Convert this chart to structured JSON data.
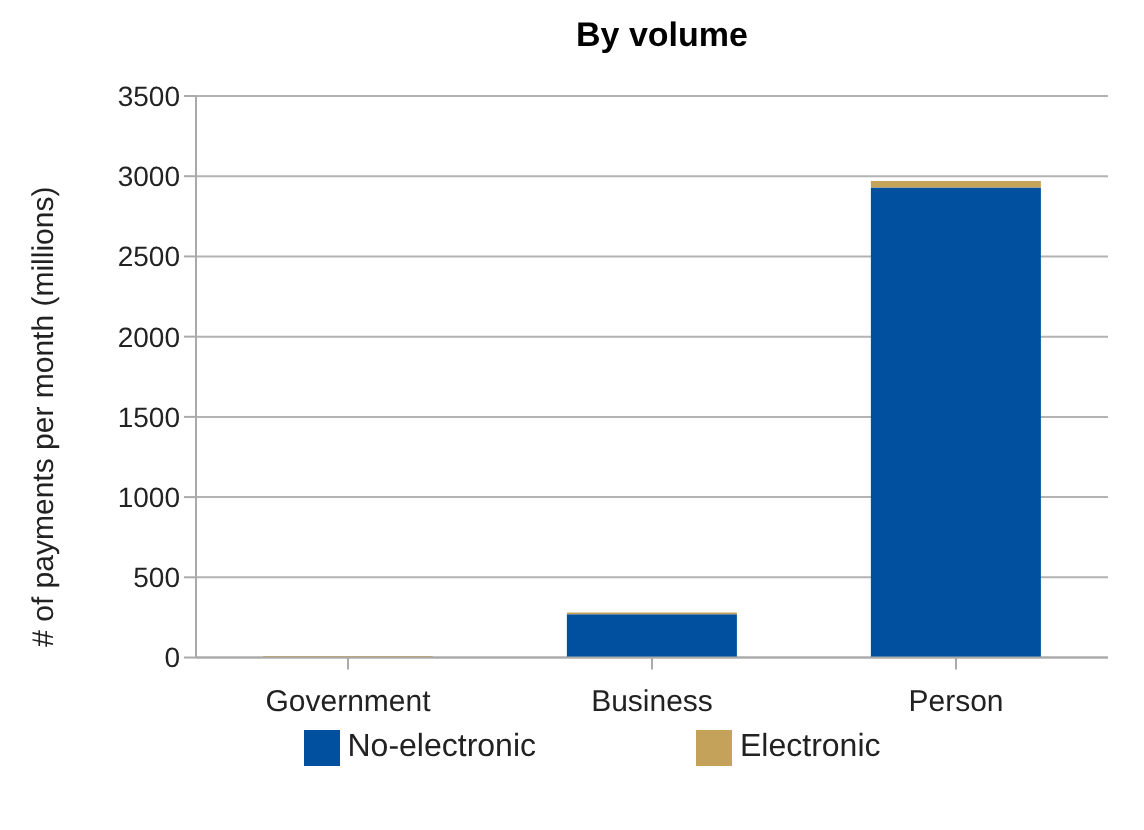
{
  "chart_data": {
    "type": "bar",
    "title": "By volume",
    "ylabel": "# of payments per month (millions)",
    "categories": [
      "Government",
      "Business",
      "Person"
    ],
    "stacked": true,
    "series": [
      {
        "name": "No-electronic",
        "color": "#0050a0",
        "values": [
          0,
          270,
          2930
        ]
      },
      {
        "name": "Electronic",
        "color": "#c4a25a",
        "values": [
          10,
          10,
          40
        ]
      }
    ],
    "ylim": [
      0,
      3500
    ],
    "yticks": [
      0,
      500,
      1000,
      1500,
      2000,
      2500,
      3000,
      3500
    ],
    "grid": "y",
    "legend": "bottom"
  }
}
